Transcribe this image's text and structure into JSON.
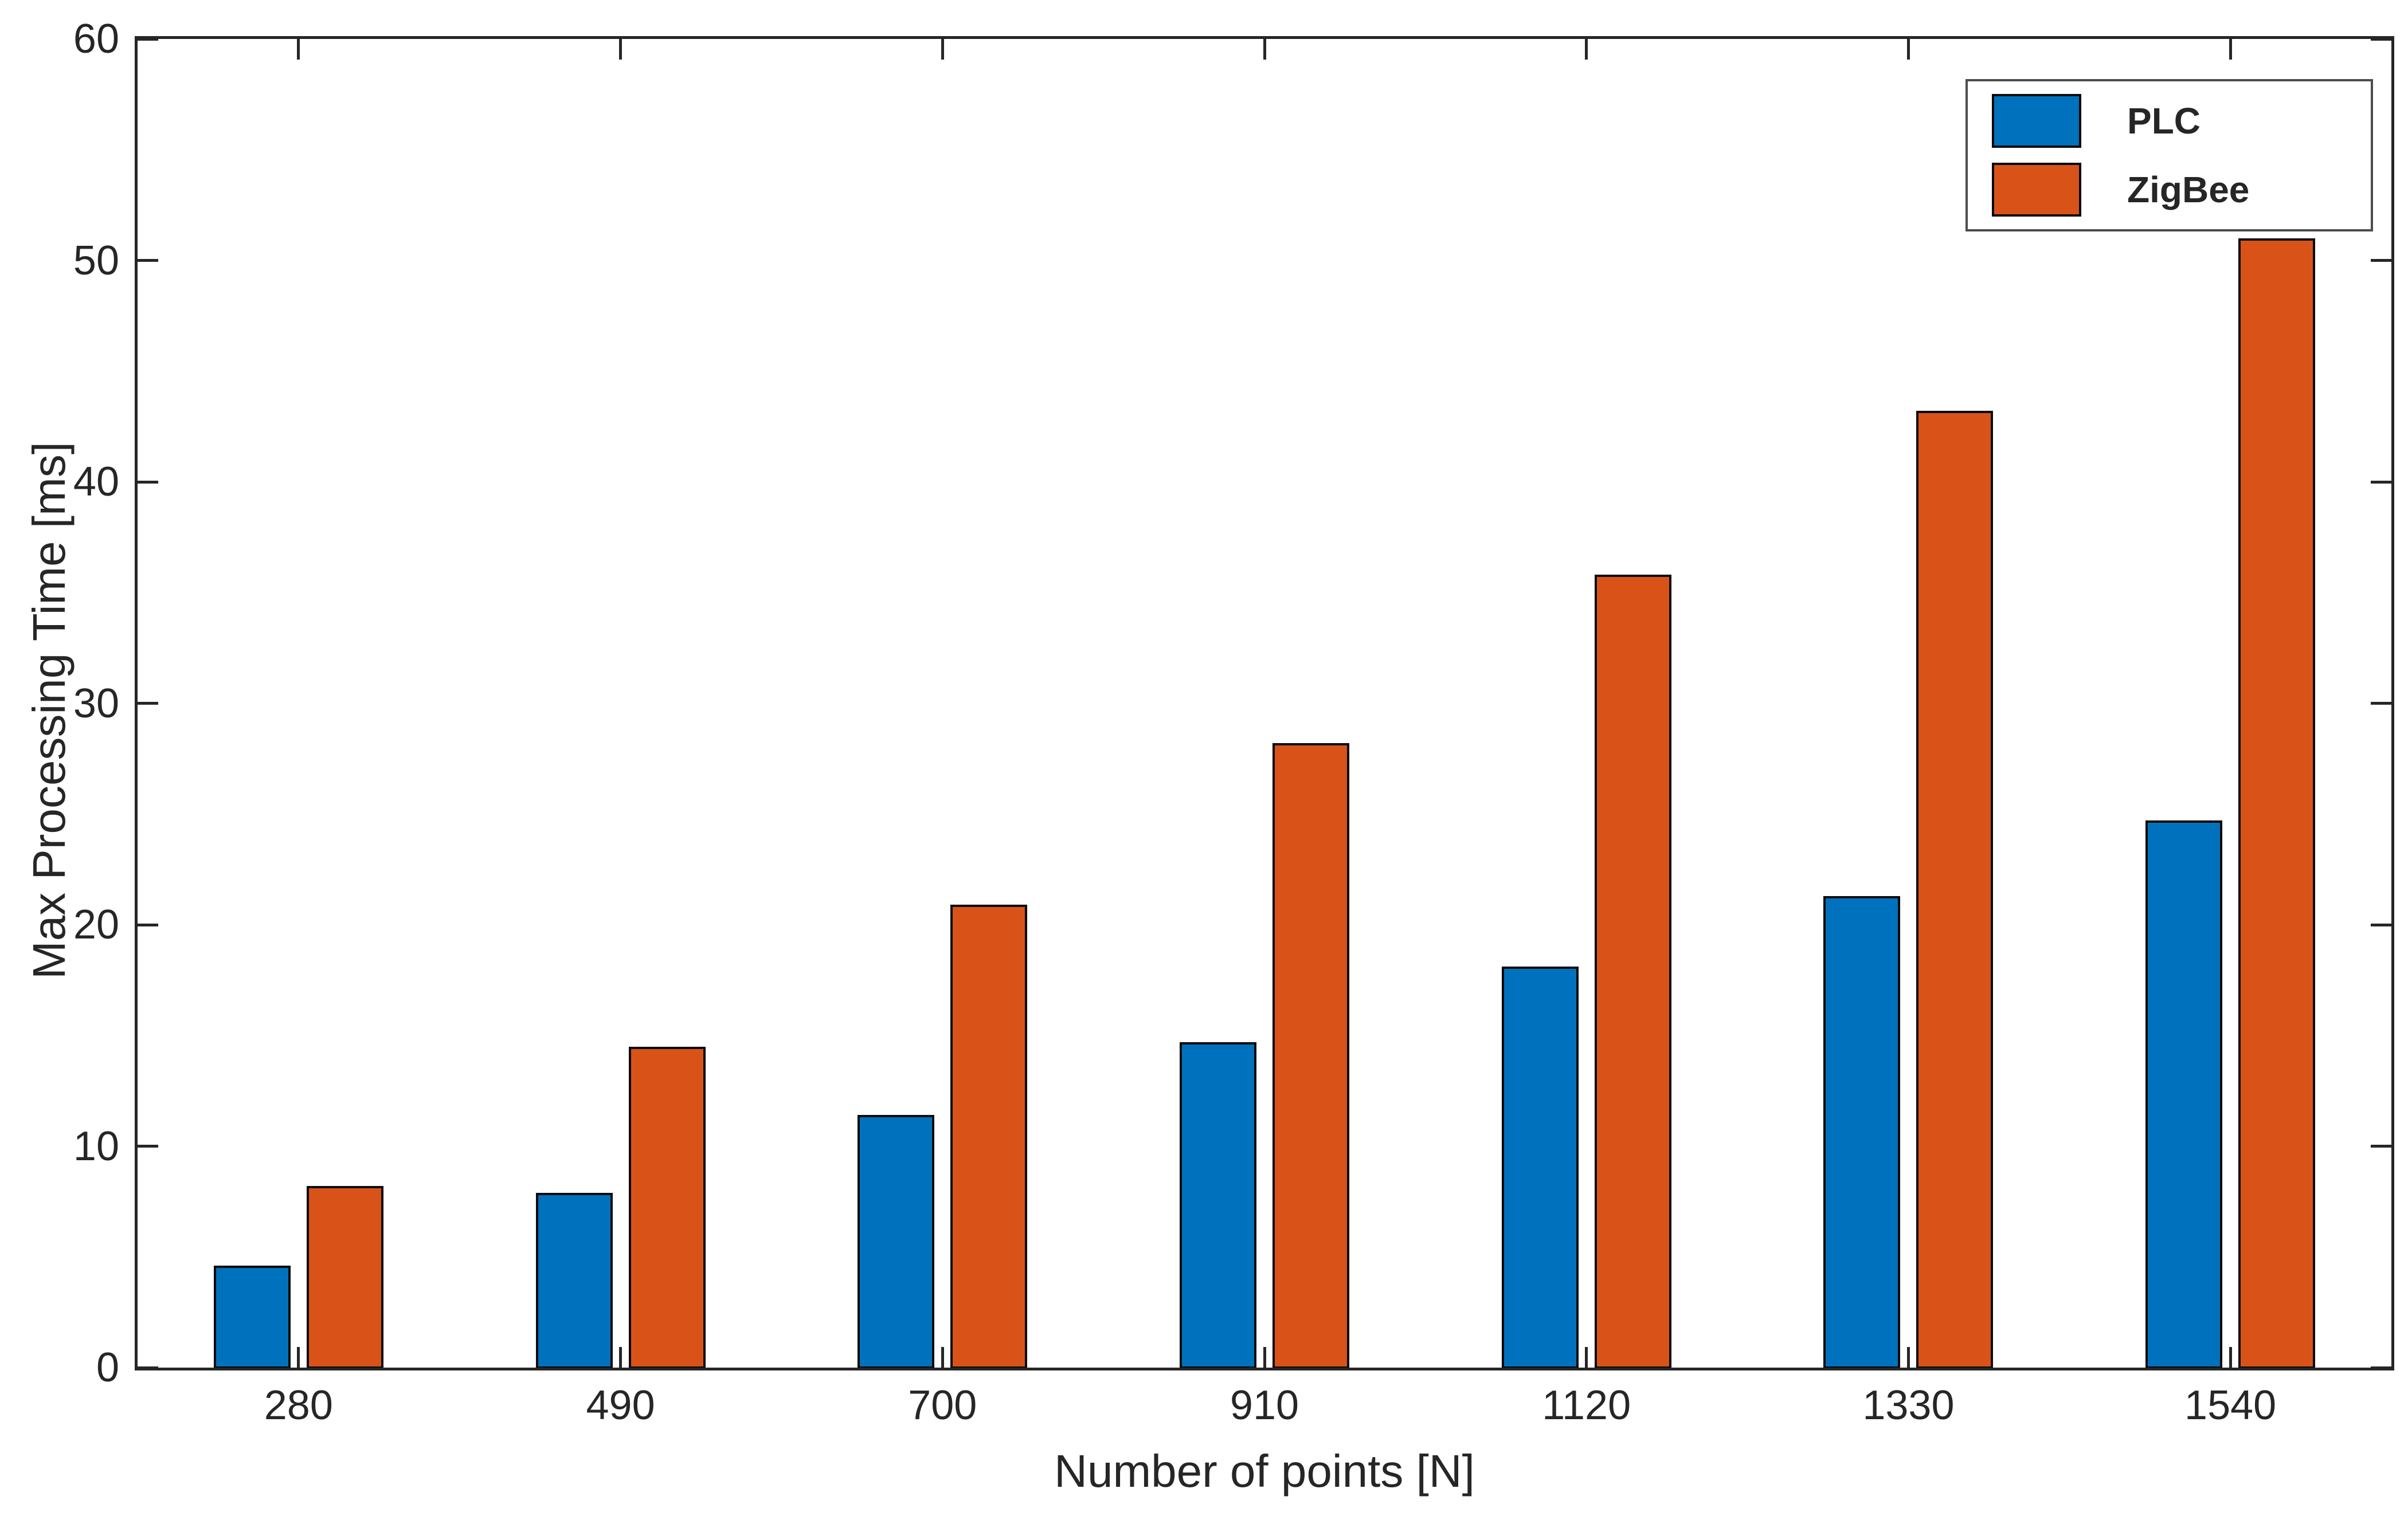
{
  "figure": {
    "background": "#ffffff",
    "axis_color": "#262626",
    "bar_edge_color": "#0a0a0a"
  },
  "chart_data": {
    "type": "bar",
    "title": "",
    "xlabel": "Number of points [N]",
    "ylabel": "Max Processing Time [ms]",
    "categories": [
      "280",
      "490",
      "700",
      "910",
      "1120",
      "1330",
      "1540"
    ],
    "series": [
      {
        "name": "PLC",
        "color": "#0072BD",
        "values": [
          4.6,
          7.9,
          11.4,
          14.7,
          18.1,
          21.3,
          24.7
        ]
      },
      {
        "name": "ZigBee",
        "color": "#D95319",
        "values": [
          8.2,
          14.5,
          20.9,
          28.2,
          35.8,
          43.2,
          51.0
        ]
      }
    ],
    "ylim": [
      0,
      60
    ],
    "yticks": [
      0,
      10,
      20,
      30,
      40,
      50,
      60
    ],
    "grid": false,
    "legend_position": "top-right"
  }
}
